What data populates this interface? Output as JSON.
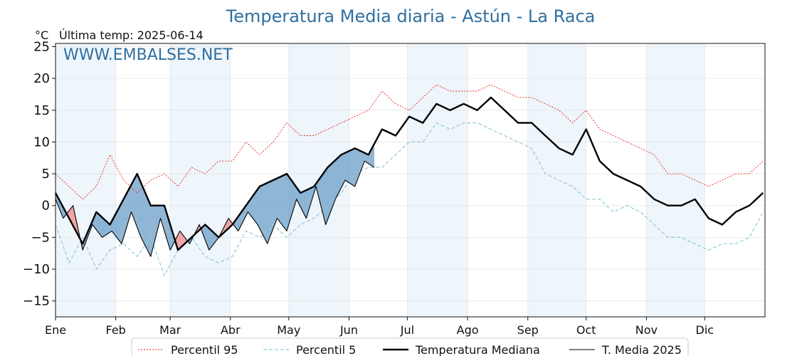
{
  "chart_data": {
    "type": "line",
    "title": "Temperatura Media diaria - Astún - La Raca",
    "unit_label": "°C",
    "last_temp_label": "Última temp: 2025-06-14",
    "watermark": "WWW.EMBALSES.NET",
    "xlabel": "",
    "ylabel": "",
    "ylim": [
      -17.5,
      25.5
    ],
    "y_ticks": [
      -15,
      -10,
      -5,
      0,
      5,
      10,
      15,
      20,
      25
    ],
    "month_ticks": [
      {
        "label": "Ene",
        "day": 1
      },
      {
        "label": "Feb",
        "day": 32
      },
      {
        "label": "Mar",
        "day": 60
      },
      {
        "label": "Abr",
        "day": 91
      },
      {
        "label": "May",
        "day": 121
      },
      {
        "label": "Jun",
        "day": 152
      },
      {
        "label": "Jul",
        "day": 182
      },
      {
        "label": "Ago",
        "day": 213
      },
      {
        "label": "Sep",
        "day": 244
      },
      {
        "label": "Oct",
        "day": 274
      },
      {
        "label": "Nov",
        "day": 305
      },
      {
        "label": "Dic",
        "day": 335
      }
    ],
    "shaded_months": [
      "Ene",
      "Mar",
      "May",
      "Jul",
      "Sep",
      "Nov"
    ],
    "grid": true,
    "legend_position": "bottom-center",
    "colors": {
      "p95": "#e8201a",
      "p5": "#8ec9dc",
      "median": "#000000",
      "year": "#000000",
      "warm_fill": "#f08a8a",
      "cold_fill": "#6b9dc8",
      "month_band": "#eef5fb"
    },
    "series": [
      {
        "name": "Percentil 95",
        "style": "dotted-red",
        "x": [
          1,
          8,
          15,
          22,
          29,
          36,
          43,
          50,
          57,
          64,
          71,
          78,
          85,
          92,
          99,
          106,
          113,
          120,
          127,
          134,
          141,
          148,
          155,
          162,
          169,
          176,
          183,
          190,
          197,
          204,
          211,
          218,
          225,
          232,
          239,
          246,
          253,
          260,
          267,
          274,
          281,
          288,
          295,
          302,
          309,
          316,
          323,
          330,
          337,
          344,
          351,
          358,
          365
        ],
        "values": [
          5,
          3,
          1,
          3,
          8,
          4,
          2,
          4,
          5,
          3,
          6,
          5,
          7,
          7,
          10,
          8,
          10,
          13,
          11,
          11,
          12,
          13,
          14,
          15,
          18,
          16,
          15,
          17,
          19,
          18,
          18,
          18,
          19,
          18,
          17,
          17,
          16,
          15,
          13,
          15,
          12,
          11,
          10,
          9,
          8,
          5,
          5,
          4,
          3,
          4,
          5,
          5,
          7
        ]
      },
      {
        "name": "Percentil 5",
        "style": "dashed-lightblue",
        "x": [
          1,
          8,
          15,
          22,
          29,
          36,
          43,
          50,
          57,
          64,
          71,
          78,
          85,
          92,
          99,
          106,
          113,
          120,
          127,
          134,
          141,
          148,
          155,
          162,
          169,
          176,
          183,
          190,
          197,
          204,
          211,
          218,
          225,
          232,
          239,
          246,
          253,
          260,
          267,
          274,
          281,
          288,
          295,
          302,
          309,
          316,
          323,
          330,
          337,
          344,
          351,
          358,
          365
        ],
        "values": [
          -3,
          -9,
          -5,
          -10,
          -7,
          -6,
          -8,
          -5,
          -11,
          -7,
          -5,
          -8,
          -9,
          -8,
          -4,
          -5,
          -3,
          -5,
          -3,
          -2,
          0,
          2,
          5,
          6,
          6,
          8,
          10,
          10,
          13,
          12,
          13,
          13,
          12,
          11,
          10,
          9,
          5,
          4,
          3,
          1,
          1,
          -1,
          0,
          -1,
          -3,
          -5,
          -5,
          -6,
          -7,
          -6,
          -6,
          -5,
          -1
        ]
      },
      {
        "name": "Temperatura Mediana",
        "style": "thick-black",
        "x": [
          1,
          8,
          15,
          22,
          29,
          36,
          43,
          50,
          57,
          64,
          71,
          78,
          85,
          92,
          99,
          106,
          113,
          120,
          127,
          134,
          141,
          148,
          155,
          162,
          169,
          176,
          183,
          190,
          197,
          204,
          211,
          218,
          225,
          232,
          239,
          246,
          253,
          260,
          267,
          274,
          281,
          288,
          295,
          302,
          309,
          316,
          323,
          330,
          337,
          344,
          351,
          358,
          365
        ],
        "values": [
          2,
          -2,
          -6,
          -1,
          -3,
          1,
          5,
          0,
          0,
          -7,
          -5,
          -3,
          -5,
          -3,
          0,
          3,
          4,
          5,
          2,
          3,
          6,
          8,
          9,
          8,
          12,
          11,
          14,
          13,
          16,
          15,
          16,
          15,
          17,
          15,
          13,
          13,
          11,
          9,
          8,
          12,
          7,
          5,
          4,
          3,
          1,
          0,
          0,
          1,
          -2,
          -3,
          -1,
          0,
          2
        ]
      },
      {
        "name": "T. Media 2025",
        "style": "thin-black",
        "x": [
          1,
          5,
          10,
          15,
          20,
          25,
          30,
          35,
          40,
          45,
          50,
          55,
          60,
          65,
          70,
          75,
          80,
          85,
          90,
          95,
          100,
          105,
          110,
          115,
          120,
          125,
          130,
          135,
          140,
          145,
          150,
          155,
          160,
          165
        ],
        "values": [
          1,
          -2,
          0,
          -7,
          -3,
          -5,
          -4,
          -6,
          -1,
          -5,
          -8,
          -2,
          -7,
          -4,
          -6,
          -3,
          -7,
          -5,
          -2,
          -4,
          -1,
          -3,
          -6,
          -2,
          -4,
          1,
          -2,
          3,
          -3,
          1,
          4,
          3,
          7,
          6
        ]
      }
    ],
    "legend": [
      "Percentil 95",
      "Percentil 5",
      "Temperatura Mediana",
      "T. Media 2025"
    ]
  }
}
